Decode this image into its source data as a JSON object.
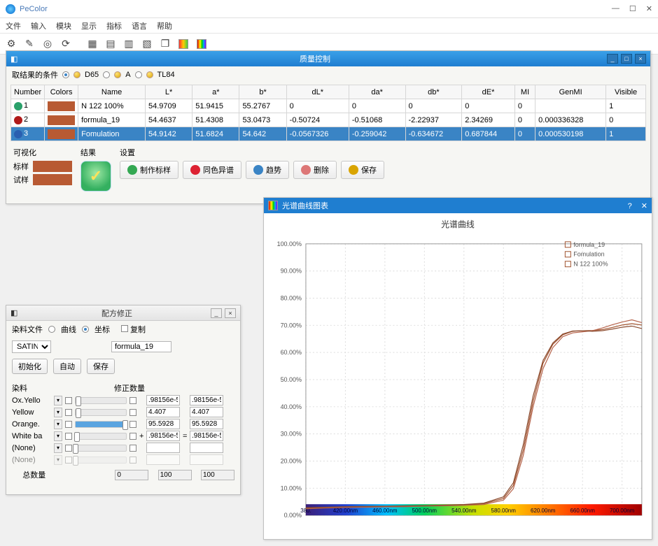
{
  "app": {
    "title": "PeColor",
    "menus": [
      "文件",
      "输入",
      "模块",
      "显示",
      "指标",
      "语言",
      "帮助"
    ]
  },
  "qc": {
    "title": "质量控制",
    "filter_label": "取结果的条件",
    "illuminants": [
      "D65",
      "A",
      "TL84"
    ],
    "columns": [
      "Number",
      "Colors",
      "Name",
      "L*",
      "a*",
      "b*",
      "dL*",
      "da*",
      "db*",
      "dE*",
      "MI",
      "GenMI",
      "Visible"
    ],
    "rows": [
      {
        "idx": "1",
        "ic": "#2aa06a",
        "color": "#b85a33",
        "name": "N 122 100%",
        "L": "54.9709",
        "a": "51.9415",
        "b": "55.2767",
        "dL": "0",
        "da": "0",
        "db": "0",
        "dE": "0",
        "MI": "0",
        "GenMI": "",
        "Vis": "1"
      },
      {
        "idx": "2",
        "ic": "#b01a1a",
        "color": "#b85a33",
        "name": "formula_19",
        "L": "54.4637",
        "a": "51.4308",
        "b": "53.0473",
        "dL": "-0.50724",
        "da": "-0.51068",
        "db": "-2.22937",
        "dE": "2.34269",
        "MI": "0",
        "GenMI": "0.000336328",
        "Vis": "0"
      },
      {
        "idx": "3",
        "ic": "#2a5fb0",
        "color": "#b85a33",
        "name": "Fomulation",
        "L": "54.9142",
        "a": "51.6824",
        "b": "54.642",
        "dL": "-0.0567326",
        "da": "-0.259042",
        "db": "-0.634672",
        "dE": "0.687844",
        "MI": "0",
        "GenMI": "0.000530198",
        "Vis": "1",
        "selected": true
      }
    ],
    "bottom": {
      "vis_label": "可视化",
      "std_label": "标样",
      "std_color": "#b85a33",
      "trial_label": "试样",
      "trial_color": "#b85a33",
      "result_label": "结果",
      "settings_label": "设置",
      "buttons": [
        {
          "label": "制作标样",
          "color": "#34a853"
        },
        {
          "label": "同色异谱",
          "color": "#d23"
        },
        {
          "label": "趋势",
          "color": "#3a84c5"
        },
        {
          "label": "删除",
          "color": "#d77"
        },
        {
          "label": "保存",
          "color": "#d9a400"
        }
      ]
    }
  },
  "rc": {
    "title": "配方修正",
    "dyefile_label": "染料文件",
    "mode_curve": "曲线",
    "mode_coord": "坐标",
    "copy_label": "复制",
    "satin": "SATIN",
    "formula": "formula_19",
    "btn_init": "初始化",
    "btn_auto": "自动",
    "btn_save": "保存",
    "head_dye": "染料",
    "head_qty": "修正数量",
    "rows": [
      {
        "name": "Ox.Yello",
        "pct": 5,
        "v1": ".98156e-5",
        "v2": ".98156e-5",
        "disabled": false
      },
      {
        "name": "Yellow",
        "pct": 6,
        "v1": "4.407",
        "v2": "4.407",
        "disabled": false
      },
      {
        "name": "Orange.",
        "pct": 98,
        "v1": "95.5928",
        "v2": "95.5928",
        "disabled": false
      },
      {
        "name": "White ba",
        "pct": 3,
        "plus": true,
        "v1": ".98156e-5",
        "eq": true,
        "v2": ".98156e-5",
        "disabled": false
      },
      {
        "name": "(None)",
        "pct": 0,
        "v1": "",
        "v2": "",
        "disabled": false
      },
      {
        "name": "(None)",
        "pct": 0,
        "v1": "",
        "v2": "",
        "disabled": true
      }
    ],
    "total_label": "总数量",
    "total0": "0",
    "total1": "100",
    "total2": "100"
  },
  "chart": {
    "title": "光谱曲线图表",
    "heading": "光谱曲线",
    "legend": [
      {
        "label": "formula_19",
        "color": "#a0522d"
      },
      {
        "label": "Fomulation",
        "color": "#a0522d"
      },
      {
        "label": "N 122 100%",
        "color": "#a0522d"
      }
    ],
    "y_ticks": [
      0,
      10,
      20,
      30,
      40,
      50,
      60,
      70,
      80,
      90,
      100
    ],
    "x_ticks": [
      380,
      420,
      460,
      500,
      540,
      580,
      620,
      660,
      700
    ],
    "x_labels": [
      "380.",
      "420.00nm",
      "460.00nm",
      "500.00nm",
      "540.00nm",
      "580.00nm",
      "620.00nm",
      "660.00nm",
      "700.00nm"
    ],
    "plot": {
      "margin": {
        "l": 60,
        "r": 14,
        "t": 44,
        "b": 34
      },
      "bg": "#ffffff",
      "grid": "#dcdcdc",
      "axis": "#888",
      "xmin": 380,
      "xmax": 720,
      "ymin": 0,
      "ymax": 100
    },
    "series": [
      {
        "color": "#a0522d",
        "pts": [
          [
            380,
            2.6
          ],
          [
            400,
            2.9
          ],
          [
            420,
            3.1
          ],
          [
            440,
            3.2
          ],
          [
            460,
            3.3
          ],
          [
            480,
            3.4
          ],
          [
            500,
            3.5
          ],
          [
            520,
            3.7
          ],
          [
            540,
            3.9
          ],
          [
            560,
            4.3
          ],
          [
            580,
            6.2
          ],
          [
            590,
            11
          ],
          [
            600,
            24
          ],
          [
            610,
            42
          ],
          [
            620,
            56
          ],
          [
            630,
            63
          ],
          [
            640,
            66.5
          ],
          [
            650,
            67.8
          ],
          [
            660,
            68
          ],
          [
            670,
            68.1
          ],
          [
            680,
            68.4
          ],
          [
            690,
            69.2
          ],
          [
            700,
            70.1
          ],
          [
            710,
            70.6
          ],
          [
            720,
            70.1
          ]
        ]
      },
      {
        "color": "#b5624a",
        "pts": [
          [
            380,
            2.4
          ],
          [
            400,
            2.7
          ],
          [
            420,
            2.9
          ],
          [
            440,
            3.0
          ],
          [
            460,
            3.1
          ],
          [
            480,
            3.2
          ],
          [
            500,
            3.4
          ],
          [
            520,
            3.5
          ],
          [
            540,
            3.7
          ],
          [
            560,
            4.0
          ],
          [
            580,
            5.6
          ],
          [
            590,
            9.8
          ],
          [
            600,
            22
          ],
          [
            610,
            40
          ],
          [
            620,
            54
          ],
          [
            630,
            61.8
          ],
          [
            640,
            65.8
          ],
          [
            650,
            67.2
          ],
          [
            660,
            67.6
          ],
          [
            670,
            68.0
          ],
          [
            680,
            69.0
          ],
          [
            690,
            70.2
          ],
          [
            700,
            71.2
          ],
          [
            710,
            72.0
          ],
          [
            720,
            71.0
          ]
        ]
      },
      {
        "color": "#8a4a2e",
        "pts": [
          [
            380,
            2.8
          ],
          [
            400,
            3.0
          ],
          [
            420,
            3.2
          ],
          [
            440,
            3.3
          ],
          [
            460,
            3.4
          ],
          [
            480,
            3.5
          ],
          [
            500,
            3.6
          ],
          [
            520,
            3.8
          ],
          [
            540,
            4.0
          ],
          [
            560,
            4.5
          ],
          [
            580,
            6.8
          ],
          [
            590,
            12
          ],
          [
            600,
            26
          ],
          [
            610,
            44
          ],
          [
            620,
            57
          ],
          [
            630,
            63.5
          ],
          [
            640,
            66.8
          ],
          [
            650,
            67.9
          ],
          [
            660,
            68.0
          ],
          [
            670,
            67.8
          ],
          [
            680,
            68.0
          ],
          [
            690,
            68.6
          ],
          [
            700,
            69.3
          ],
          [
            710,
            69.7
          ],
          [
            720,
            68.8
          ]
        ]
      }
    ],
    "spectrum_stops": [
      {
        "o": 0.0,
        "c": "#3a1f7a"
      },
      {
        "o": 0.12,
        "c": "#2040d0"
      },
      {
        "o": 0.24,
        "c": "#00c0ff"
      },
      {
        "o": 0.35,
        "c": "#00d060"
      },
      {
        "o": 0.5,
        "c": "#c8e000"
      },
      {
        "o": 0.6,
        "c": "#ffd000"
      },
      {
        "o": 0.72,
        "c": "#ff7a00"
      },
      {
        "o": 0.85,
        "c": "#ff1a00"
      },
      {
        "o": 1.0,
        "c": "#a00000"
      }
    ]
  }
}
